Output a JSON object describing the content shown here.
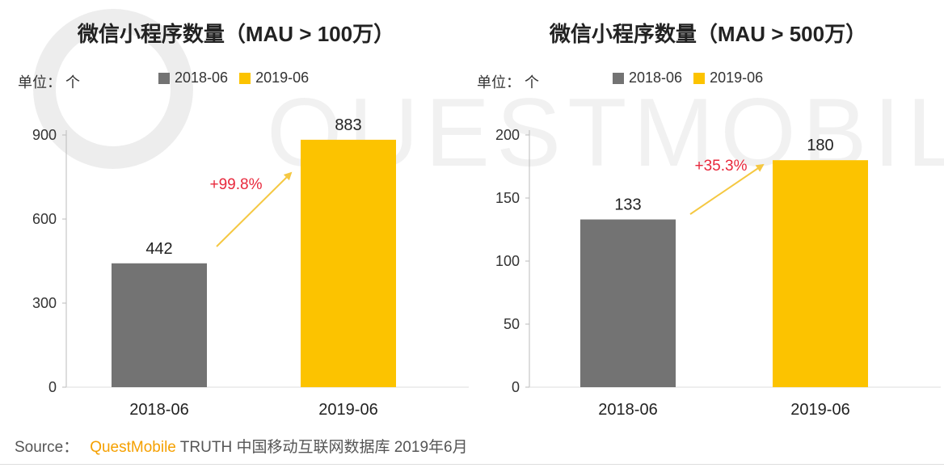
{
  "chart_data": [
    {
      "type": "bar",
      "title": "微信小程序数量（MAU > 100万）",
      "unit": "单位：  个",
      "categories": [
        "2018-06",
        "2019-06"
      ],
      "values": [
        442,
        883
      ],
      "data_labels": [
        "442",
        "883"
      ],
      "growth_annotation": "+99.8%",
      "yticks": [
        0,
        300,
        600,
        900
      ],
      "ylim": [
        0,
        900
      ],
      "legend": [
        "2018-06",
        "2019-06"
      ],
      "legend_position": "top",
      "grid": false
    },
    {
      "type": "bar",
      "title": "微信小程序数量（MAU > 500万）",
      "unit": "单位：  个",
      "categories": [
        "2018-06",
        "2019-06"
      ],
      "values": [
        133,
        180
      ],
      "data_labels": [
        "133",
        "180"
      ],
      "growth_annotation": "+35.3%",
      "yticks": [
        0,
        50,
        100,
        150,
        200
      ],
      "ylim": [
        0,
        200
      ],
      "legend": [
        "2018-06",
        "2019-06"
      ],
      "legend_position": "top",
      "grid": false
    }
  ],
  "colors": {
    "series_2018": "#737373",
    "series_2019": "#fcc300",
    "arrow": "#f5c842",
    "growth_text": "#e8283c",
    "brand": "#f5a000"
  },
  "source": {
    "prefix": "Source：",
    "brand": "QuestMobile",
    "rest": " TRUTH 中国移动互联网数据库 2019年6月"
  },
  "watermark": "QUESTMOBILE"
}
